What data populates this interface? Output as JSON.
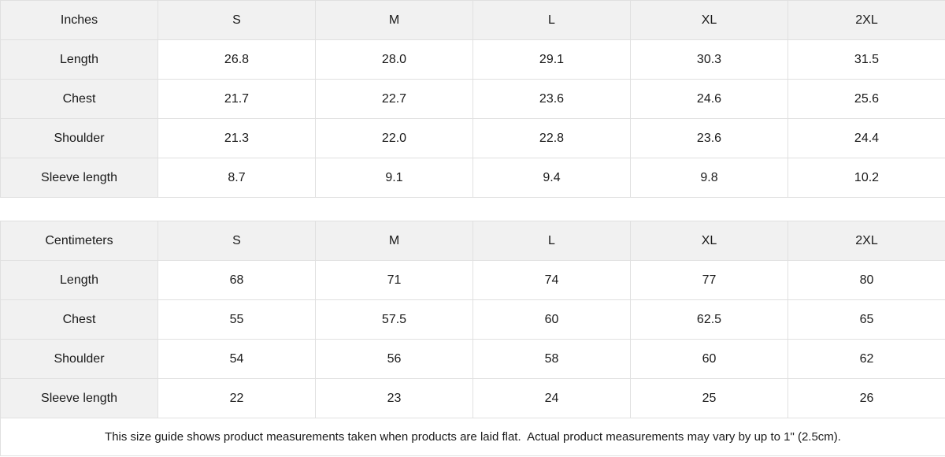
{
  "colors": {
    "header_background": "#f1f1f1",
    "border": "#e0e0e0",
    "text": "#1a1a1a",
    "cell_background": "#ffffff"
  },
  "chart_data": [
    {
      "type": "table",
      "title": "Inches",
      "columns": [
        "S",
        "M",
        "L",
        "XL",
        "2XL"
      ],
      "rows": [
        {
          "label": "Length",
          "values": [
            "26.8",
            "28.0",
            "29.1",
            "30.3",
            "31.5"
          ]
        },
        {
          "label": "Chest",
          "values": [
            "21.7",
            "22.7",
            "23.6",
            "24.6",
            "25.6"
          ]
        },
        {
          "label": "Shoulder",
          "values": [
            "21.3",
            "22.0",
            "22.8",
            "23.6",
            "24.4"
          ]
        },
        {
          "label": "Sleeve length",
          "values": [
            "8.7",
            "9.1",
            "9.4",
            "9.8",
            "10.2"
          ]
        }
      ]
    },
    {
      "type": "table",
      "title": "Centimeters",
      "columns": [
        "S",
        "M",
        "L",
        "XL",
        "2XL"
      ],
      "rows": [
        {
          "label": "Length",
          "values": [
            "68",
            "71",
            "74",
            "77",
            "80"
          ]
        },
        {
          "label": "Chest",
          "values": [
            "55",
            "57.5",
            "60",
            "62.5",
            "65"
          ]
        },
        {
          "label": "Shoulder",
          "values": [
            "54",
            "56",
            "58",
            "60",
            "62"
          ]
        },
        {
          "label": "Sleeve length",
          "values": [
            "22",
            "23",
            "24",
            "25",
            "26"
          ]
        }
      ]
    }
  ],
  "footer": {
    "note": "This size guide shows product measurements taken when products are laid flat.  Actual product measurements may vary by up to 1\" (2.5cm)."
  }
}
